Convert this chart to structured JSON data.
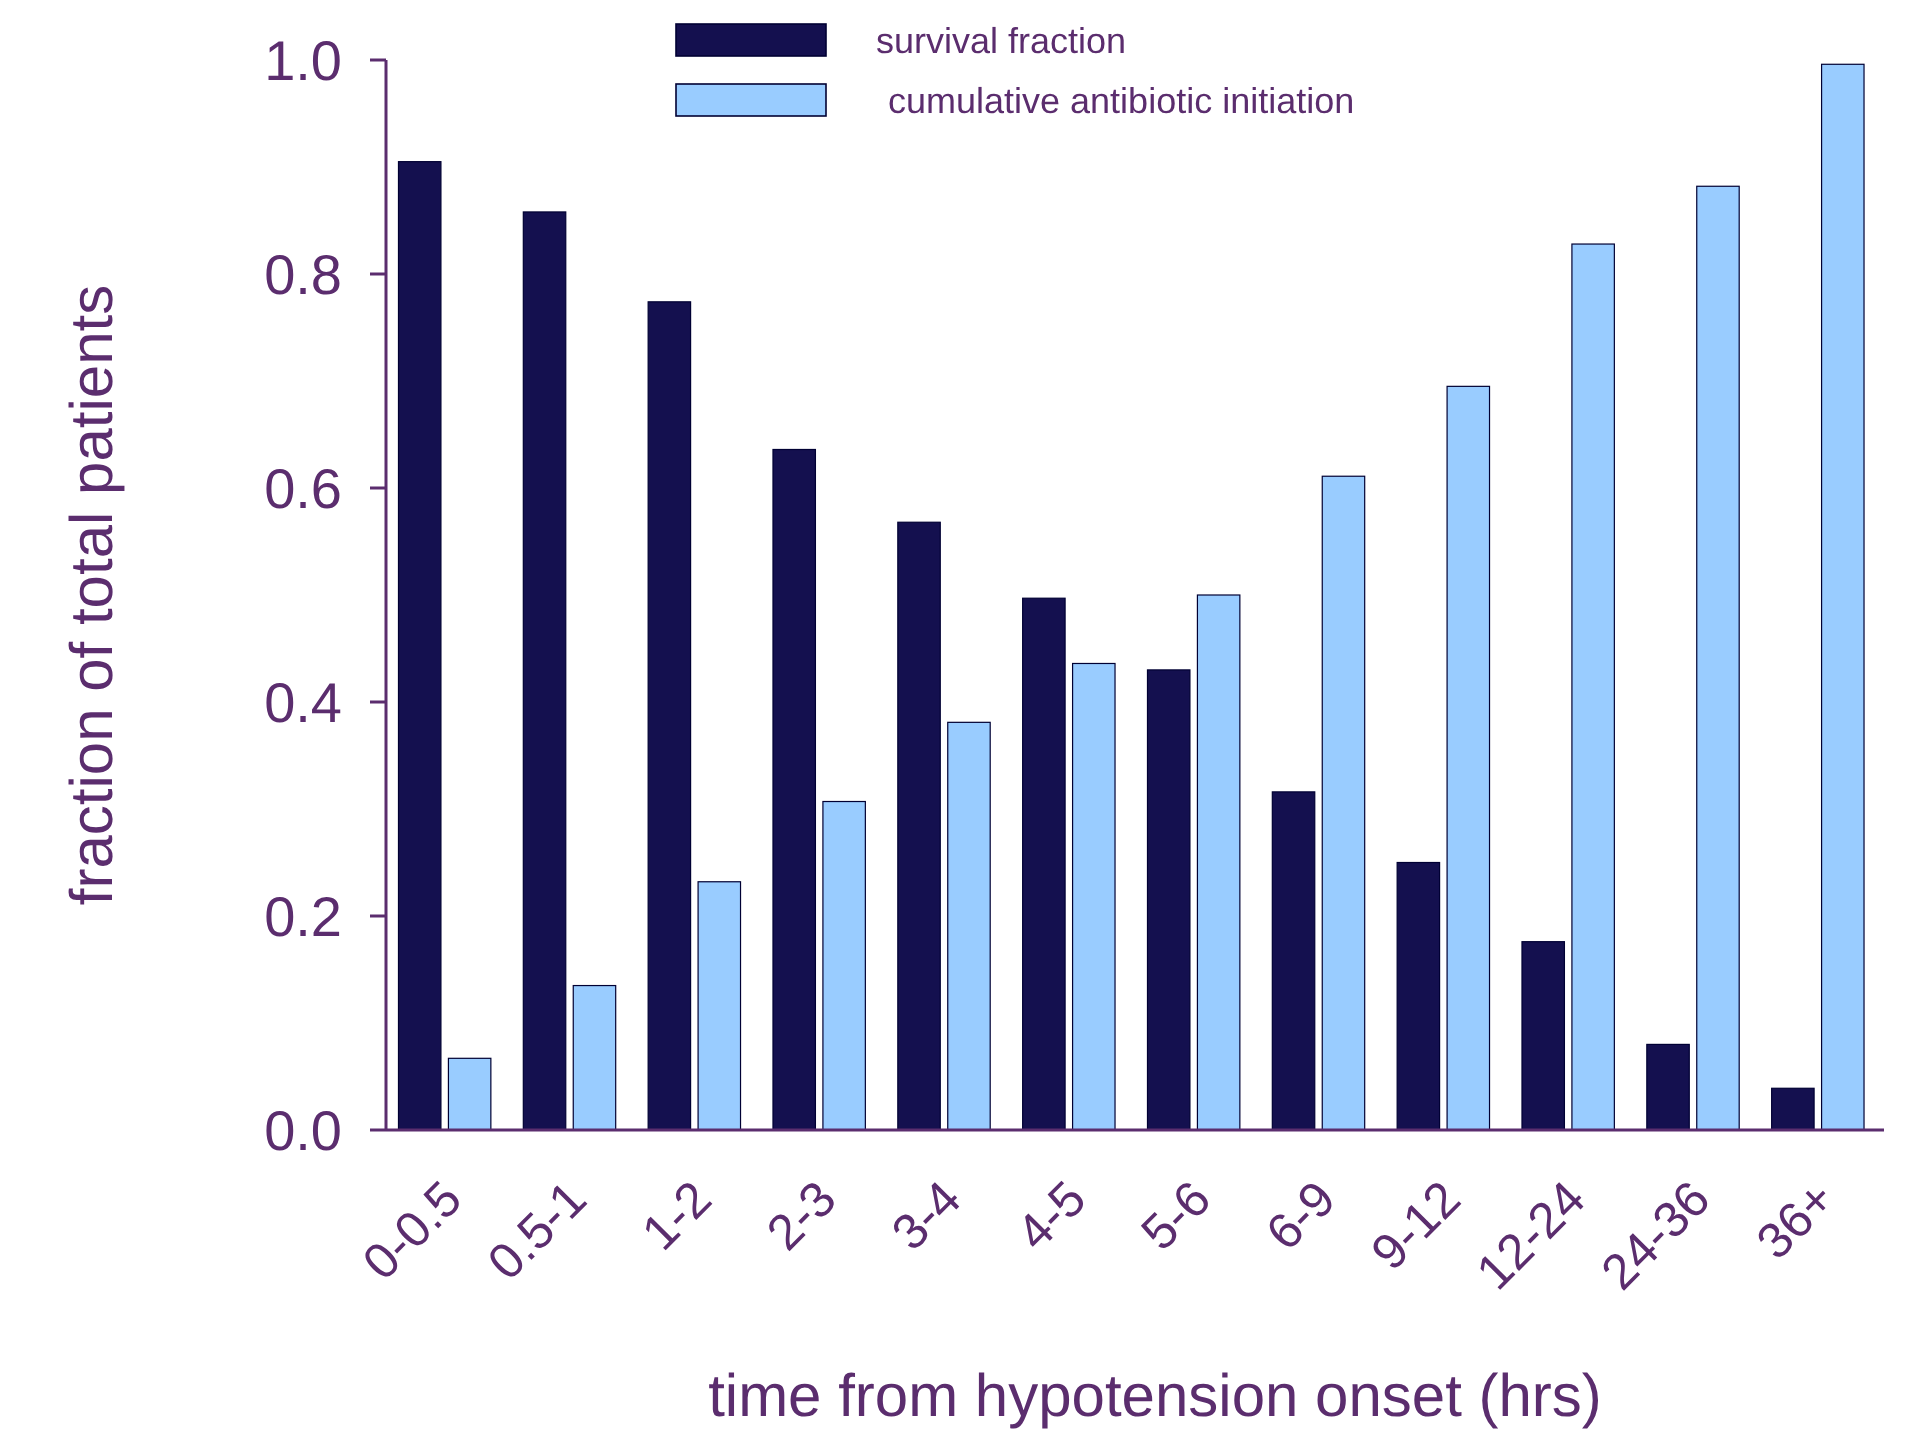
{
  "chart_data": {
    "type": "bar",
    "xlabel": "time from hypotension onset (hrs)",
    "ylabel": "fraction of total patients",
    "categories": [
      "0-0.5",
      "0.5-1",
      "1-2",
      "2-3",
      "3-4",
      "4-5",
      "5-6",
      "6-9",
      "9-12",
      "12-24",
      "24-36",
      "36+"
    ],
    "series": [
      {
        "name": "survival fraction",
        "color": "#14104f",
        "values": [
          0.905,
          0.858,
          0.774,
          0.636,
          0.568,
          0.497,
          0.43,
          0.316,
          0.25,
          0.176,
          0.08,
          0.039
        ]
      },
      {
        "name": "cumulative antibiotic initiation",
        "color": "#99ccff",
        "values": [
          0.067,
          0.135,
          0.232,
          0.307,
          0.381,
          0.436,
          0.5,
          0.611,
          0.695,
          0.828,
          0.882,
          0.996
        ]
      }
    ],
    "ylim": [
      0,
      1
    ],
    "yticks": [
      {
        "value": 0,
        "label": "0.0"
      },
      {
        "value": 0.2,
        "label": "0.2"
      },
      {
        "value": 0.4,
        "label": "0.4"
      },
      {
        "value": 0.6,
        "label": "0.6"
      },
      {
        "value": 0.8,
        "label": "0.8"
      },
      {
        "value": 1,
        "label": "1.0"
      }
    ],
    "grid": false,
    "legend": "top"
  }
}
